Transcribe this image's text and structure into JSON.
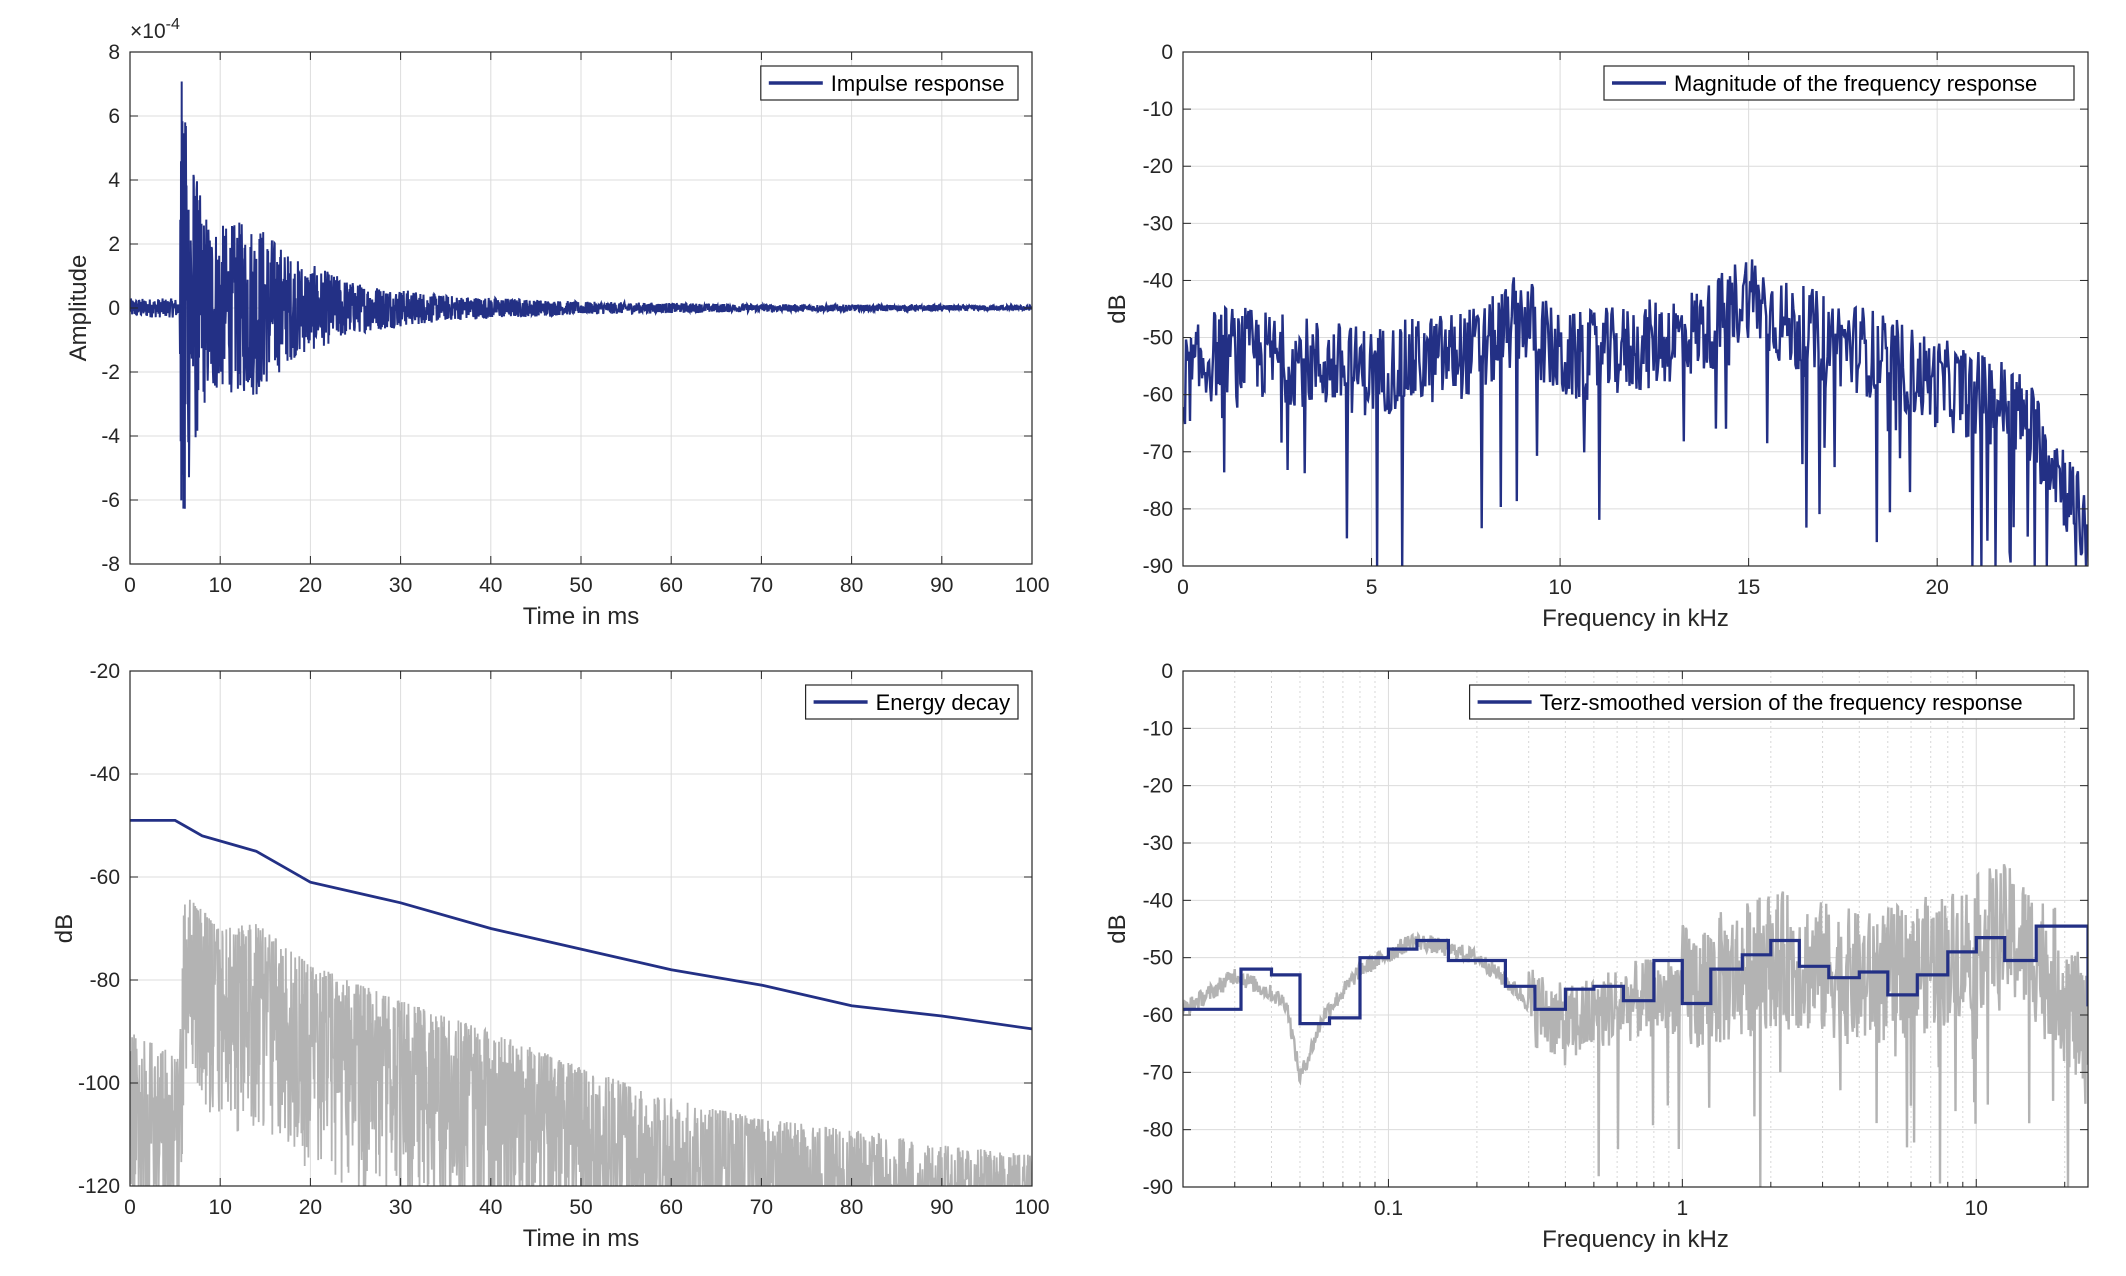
{
  "colors": {
    "primary": "#233085",
    "gray": "#b3b3b3",
    "axis": "#262626"
  },
  "chart_data": [
    {
      "id": "impulse",
      "type": "line",
      "legend": "Impulse response",
      "legend_position": "top-right",
      "xlabel": "Time in ms",
      "ylabel": "Amplitude",
      "exponent_label": "×10",
      "exponent_power": "-4",
      "xlim": [
        0,
        100
      ],
      "ylim": [
        -8,
        8
      ],
      "xticks": [
        0,
        10,
        20,
        30,
        40,
        50,
        60,
        70,
        80,
        90,
        100
      ],
      "yticks": [
        -8,
        -6,
        -4,
        -2,
        0,
        2,
        4,
        6,
        8
      ],
      "grid": true,
      "series": [
        {
          "envelope": [
            [
              0,
              0.3
            ],
            [
              5.5,
              0.3
            ],
            [
              5.7,
              7.4
            ],
            [
              6.2,
              6.2
            ],
            [
              8,
              3.2
            ],
            [
              10,
              2.6
            ],
            [
              14,
              2.8
            ],
            [
              18,
              1.6
            ],
            [
              25,
              0.8
            ],
            [
              35,
              0.4
            ],
            [
              50,
              0.2
            ],
            [
              70,
              0.12
            ],
            [
              100,
              0.08
            ]
          ]
        }
      ]
    },
    {
      "id": "magnitude",
      "type": "line",
      "legend": "Magnitude of the frequency response",
      "legend_position": "top-right",
      "xlabel": "Frequency in kHz",
      "ylabel": "dB",
      "xlim": [
        0,
        24
      ],
      "ylim": [
        -90,
        0
      ],
      "xticks": [
        0,
        5,
        10,
        15,
        20
      ],
      "yticks": [
        0,
        -10,
        -20,
        -30,
        -40,
        -50,
        -60,
        -70,
        -80,
        -90
      ],
      "grid": true,
      "series": [
        {
          "trend": [
            [
              0,
              -58
            ],
            [
              1,
              -52
            ],
            [
              3,
              -54
            ],
            [
              5,
              -56
            ],
            [
              8,
              -52
            ],
            [
              9,
              -46
            ],
            [
              10,
              -54
            ],
            [
              12,
              -52
            ],
            [
              14,
              -48
            ],
            [
              15,
              -42
            ],
            [
              16,
              -48
            ],
            [
              18,
              -52
            ],
            [
              20,
              -58
            ],
            [
              22,
              -62
            ],
            [
              23,
              -70
            ],
            [
              24,
              -85
            ]
          ]
        }
      ]
    },
    {
      "id": "energy",
      "type": "line",
      "legend": "Energy decay",
      "legend_position": "top-right",
      "xlabel": "Time in ms",
      "ylabel": "dB",
      "xlim": [
        0,
        100
      ],
      "ylim": [
        -120,
        -20
      ],
      "xticks": [
        0,
        10,
        20,
        30,
        40,
        50,
        60,
        70,
        80,
        90,
        100
      ],
      "yticks": [
        -20,
        -40,
        -60,
        -80,
        -100,
        -120
      ],
      "grid": true,
      "series": [
        {
          "role": "energy-decay",
          "x": [
            0,
            5,
            6,
            8,
            12,
            14,
            17,
            20,
            25,
            30,
            40,
            50,
            60,
            70,
            80,
            90,
            100
          ],
          "y": [
            -49,
            -49,
            -50,
            -52,
            -54,
            -55,
            -58,
            -61,
            -63,
            -65,
            -70,
            -74,
            -78,
            -81,
            -85,
            -87,
            -89.5
          ]
        },
        {
          "role": "squared-ir-db",
          "peak": [
            [
              0,
              -90
            ],
            [
              5.5,
              -95
            ],
            [
              6,
              -63
            ],
            [
              10,
              -70
            ],
            [
              14,
              -69
            ],
            [
              20,
              -77
            ],
            [
              30,
              -84
            ],
            [
              40,
              -90
            ],
            [
              50,
              -97
            ],
            [
              60,
              -103
            ],
            [
              70,
              -107
            ],
            [
              80,
              -109
            ],
            [
              90,
              -112
            ],
            [
              100,
              -114
            ]
          ]
        }
      ]
    },
    {
      "id": "terz",
      "type": "line",
      "legend": "Terz-smoothed version of the frequency response",
      "legend_position": "top-right",
      "xlabel": "Frequency in kHz",
      "ylabel": "dB",
      "xscale": "log",
      "xlim": [
        0.02,
        24
      ],
      "ylim": [
        -90,
        0
      ],
      "xticks": [
        0.1,
        1,
        10
      ],
      "xticklabels": [
        "0.1",
        "1",
        "10"
      ],
      "yticks": [
        0,
        -10,
        -20,
        -30,
        -40,
        -50,
        -60,
        -70,
        -80,
        -90
      ],
      "grid": true,
      "series": [
        {
          "role": "terz-smoothed",
          "bands_kHz": [
            0.02,
            0.0315,
            0.04,
            0.05,
            0.063,
            0.08,
            0.1,
            0.125,
            0.16,
            0.2,
            0.25,
            0.315,
            0.4,
            0.5,
            0.63,
            0.8,
            1,
            1.25,
            1.6,
            2,
            2.5,
            3.15,
            4,
            5,
            6.3,
            8,
            10,
            12.5,
            16,
            24
          ],
          "levels_dB": [
            -59,
            -52,
            -53,
            -61.5,
            -60.5,
            -50,
            -48.5,
            -47,
            -50.5,
            -50.5,
            -55,
            -59,
            -55.5,
            -55,
            -57.5,
            -50.5,
            -58,
            -52,
            -49.5,
            -47,
            -51.5,
            -53.5,
            -52.5,
            -56.5,
            -53,
            -49,
            -46.5,
            -50.5,
            -44.5,
            -58.5
          ]
        },
        {
          "role": "unsmoothed",
          "trend": [
            [
              0.02,
              -59
            ],
            [
              0.03,
              -53
            ],
            [
              0.045,
              -58
            ],
            [
              0.05,
              -71
            ],
            [
              0.06,
              -60
            ],
            [
              0.08,
              -52
            ],
            [
              0.12,
              -47
            ],
            [
              0.2,
              -50
            ],
            [
              0.3,
              -58
            ],
            [
              0.4,
              -62
            ],
            [
              0.6,
              -58
            ],
            [
              1,
              -56
            ],
            [
              2,
              -50
            ],
            [
              4,
              -54
            ],
            [
              8,
              -50
            ],
            [
              12,
              -45
            ],
            [
              18,
              -52
            ],
            [
              24,
              -65
            ]
          ]
        }
      ]
    }
  ]
}
